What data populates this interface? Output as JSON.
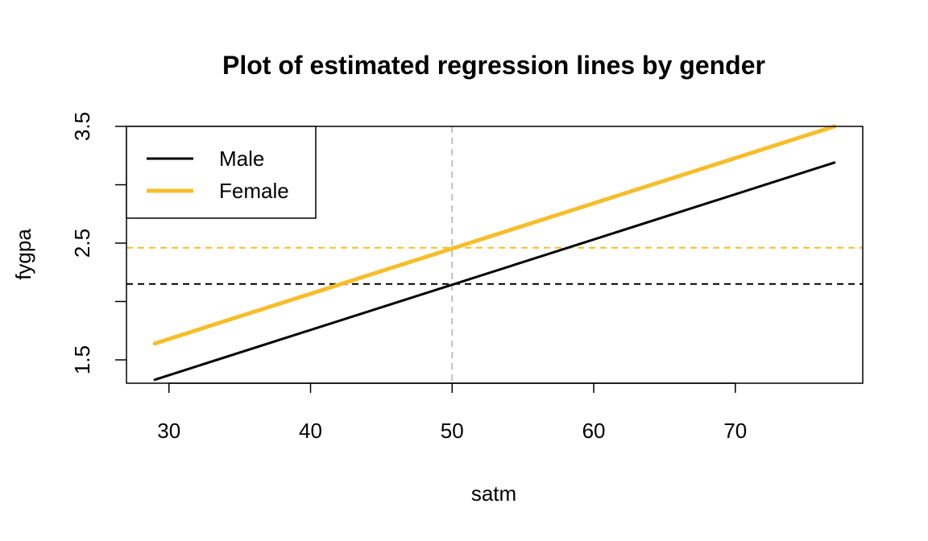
{
  "chart_data": {
    "type": "line",
    "title": "Plot of estimated regression lines by gender",
    "xlabel": "satm",
    "ylabel": "fygpa",
    "xlim": [
      27,
      79
    ],
    "ylim": [
      1.3,
      3.5
    ],
    "xticks": [
      30,
      40,
      50,
      60,
      70
    ],
    "yticks": [
      1.5,
      2.0,
      2.5,
      3.0,
      3.5
    ],
    "ytick_labels": [
      "1.5",
      "",
      "2.5",
      "",
      "3.5"
    ],
    "xtick_labels": [
      "30",
      "40",
      "50",
      "60",
      "70"
    ],
    "grid": false,
    "legend_position": "top-left",
    "series": [
      {
        "name": "Male",
        "color": "#000000",
        "x": [
          29,
          77
        ],
        "y": [
          1.33,
          3.19
        ]
      },
      {
        "name": "Female",
        "color": "#f5be2b",
        "x": [
          29,
          77
        ],
        "y": [
          1.64,
          3.5
        ]
      }
    ],
    "reference_lines": [
      {
        "orientation": "vertical",
        "x": 50,
        "color": "#bebebe"
      },
      {
        "orientation": "horizontal",
        "y": 2.46,
        "color": "#f5be2b"
      },
      {
        "orientation": "horizontal",
        "y": 2.15,
        "color": "#000000"
      }
    ]
  }
}
